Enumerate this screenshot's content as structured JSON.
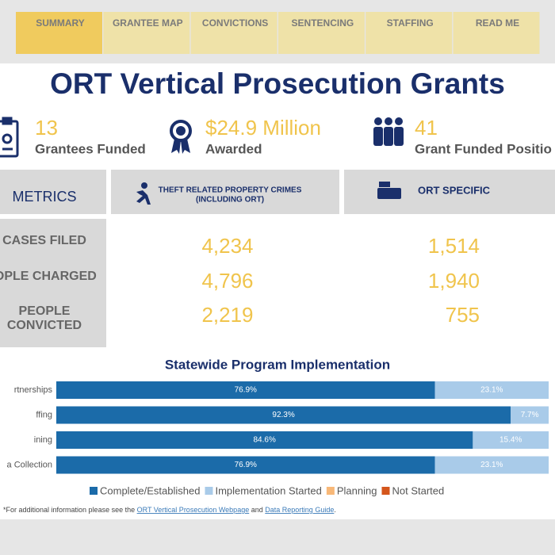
{
  "nav": {
    "tabs": [
      "SUMMARY",
      "GRANTEE MAP",
      "CONVICTIONS",
      "SENTENCING",
      "STAFFING",
      "READ ME"
    ]
  },
  "header": {
    "title": "ORT Vertical Prosecution Grants"
  },
  "kpis": [
    {
      "value": "13",
      "label": "Grantees Funded"
    },
    {
      "value": "$24.9 Million",
      "label": "Awarded"
    },
    {
      "value": "41",
      "label": "Grant Funded Positio"
    }
  ],
  "table": {
    "header": [
      "METRICS",
      "THEFT RELATED PROPERTY CRIMES",
      "(INCLUDING ORT)",
      "ORT SPECIFIC"
    ],
    "rows": [
      [
        "CASES FILED",
        "4,234",
        "1,514"
      ],
      [
        "EOPLE CHARGED",
        "4,796",
        "1,940"
      ],
      [
        [
          "PEOPLE",
          "CONVICTED"
        ],
        "2,219",
        "755"
      ]
    ]
  },
  "chart_data": {
    "type": "stacked-bar-horizontal",
    "title": "Statewide Program Implementation",
    "categories": [
      "rtnerships",
      "ffing",
      "ining",
      "a Collection"
    ],
    "xlim": [
      0,
      100
    ],
    "series": [
      {
        "name": "Complete/Established",
        "color": "#1b6ba9",
        "values": [
          76.9,
          92.3,
          84.6,
          76.9
        ],
        "value_labels": [
          "76.9%",
          "92.3%",
          "84.6%",
          "76.9%"
        ]
      },
      {
        "name": "Implementation Started",
        "color": "#a9cbe9",
        "values": [
          23.1,
          7.7,
          15.4,
          23.1
        ],
        "value_labels": [
          "23.1%",
          "7.7%",
          "15.4%",
          "23.1%"
        ]
      },
      {
        "name": "Planning",
        "color": "#f8b878",
        "values": [
          0,
          0,
          0,
          0
        ]
      },
      {
        "name": "Not Started",
        "color": "#d4561c",
        "values": [
          0,
          0,
          0,
          0
        ]
      }
    ]
  },
  "footnote": {
    "prefix": "*For additional information please see the",
    "link1": "ORT Vertical Prosecution Webpage",
    "middle": "and",
    "link2": "Data Reporting Guide",
    "suffix": "."
  }
}
